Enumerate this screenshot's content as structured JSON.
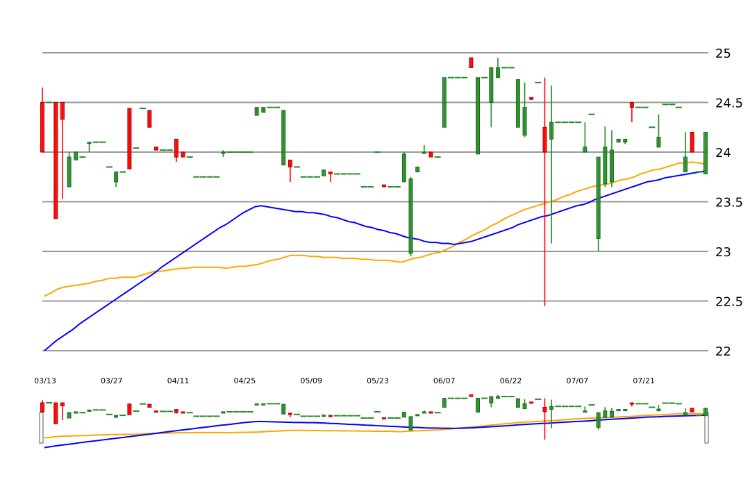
{
  "chart_data": {
    "type": "candlestick",
    "colors": {
      "up": "#228b22",
      "down": "#ff0000",
      "ma_short": "#ffa500",
      "ma_long": "#0000ff",
      "grid": "#999999"
    },
    "y_axis": {
      "ticks": [
        "22",
        "22.5",
        "23",
        "23.5",
        "24",
        "24.5",
        "25"
      ],
      "ylim": [
        22,
        25
      ],
      "position": "right"
    },
    "x_axis": {
      "ticks": [
        "03/13",
        "03/27",
        "04/11",
        "04/25",
        "05/09",
        "05/23",
        "06/07",
        "06/22",
        "07/07",
        "07/21"
      ]
    },
    "candles": [
      [
        24.5,
        24.65,
        24.0,
        24.0
      ],
      [
        24.5,
        24.5,
        24.5,
        24.5
      ],
      [
        24.5,
        24.5,
        23.33,
        23.33
      ],
      [
        24.5,
        24.5,
        23.53,
        24.33
      ],
      [
        23.65,
        24.0,
        23.65,
        23.95
      ],
      [
        23.92,
        24.0,
        23.92,
        24.0
      ],
      [
        23.95,
        23.95,
        23.95,
        23.95
      ],
      [
        24.1,
        24.1,
        24.0,
        24.1
      ],
      [
        24.1,
        24.1,
        24.1,
        24.1
      ],
      [
        24.1,
        24.1,
        24.1,
        24.1
      ],
      [
        23.85,
        23.85,
        23.85,
        23.85
      ],
      [
        23.7,
        23.8,
        23.65,
        23.8
      ],
      [
        23.8,
        23.8,
        23.8,
        23.8
      ],
      [
        24.44,
        24.44,
        23.83,
        23.83
      ],
      [
        24.04,
        24.04,
        24.04,
        24.04
      ],
      [
        24.44,
        24.44,
        24.44,
        24.44
      ],
      [
        24.42,
        24.42,
        24.25,
        24.25
      ],
      [
        24.05,
        24.05,
        24.02,
        24.02
      ],
      [
        24.02,
        24.02,
        24.02,
        24.02
      ],
      [
        24.02,
        24.02,
        24.02,
        24.02
      ],
      [
        24.13,
        24.13,
        23.9,
        23.95
      ],
      [
        24.0,
        24.0,
        23.95,
        23.95
      ],
      [
        23.95,
        23.95,
        23.95,
        23.95
      ],
      [
        23.75,
        23.75,
        23.75,
        23.75
      ],
      [
        23.75,
        23.75,
        23.75,
        23.75
      ],
      [
        23.75,
        23.75,
        23.75,
        23.75
      ],
      [
        23.75,
        23.75,
        23.75,
        23.75
      ],
      [
        24.0,
        24.02,
        23.95,
        24.0
      ],
      [
        24.0,
        24.0,
        24.0,
        24.0
      ],
      [
        24.0,
        24.0,
        24.0,
        24.0
      ],
      [
        24.0,
        24.0,
        24.0,
        24.0
      ],
      [
        24.0,
        24.0,
        24.0,
        24.0
      ],
      [
        24.37,
        24.45,
        24.37,
        24.45
      ],
      [
        24.4,
        24.45,
        24.4,
        24.45
      ],
      [
        24.45,
        24.45,
        24.45,
        24.45
      ],
      [
        24.45,
        24.45,
        24.45,
        24.45
      ],
      [
        23.87,
        24.42,
        23.87,
        24.42
      ],
      [
        23.92,
        23.92,
        23.7,
        23.85
      ],
      [
        23.85,
        23.85,
        23.85,
        23.85
      ],
      [
        23.75,
        23.75,
        23.75,
        23.75
      ],
      [
        23.75,
        23.75,
        23.75,
        23.75
      ],
      [
        23.75,
        23.75,
        23.75,
        23.75
      ],
      [
        23.76,
        23.82,
        23.76,
        23.82
      ],
      [
        23.8,
        23.8,
        23.7,
        23.78
      ],
      [
        23.78,
        23.78,
        23.78,
        23.78
      ],
      [
        23.78,
        23.78,
        23.78,
        23.78
      ],
      [
        23.78,
        23.78,
        23.78,
        23.78
      ],
      [
        23.78,
        23.78,
        23.78,
        23.78
      ],
      [
        23.65,
        23.65,
        23.65,
        23.65
      ],
      [
        23.65,
        23.65,
        23.65,
        23.65
      ],
      [
        24.0,
        24.0,
        24.0,
        24.0
      ],
      [
        23.67,
        23.67,
        23.65,
        23.65
      ],
      [
        23.65,
        23.65,
        23.65,
        23.65
      ],
      [
        23.65,
        23.65,
        23.65,
        23.65
      ],
      [
        23.7,
        24.0,
        23.7,
        23.98
      ],
      [
        22.98,
        23.75,
        22.95,
        23.73
      ],
      [
        23.8,
        23.85,
        23.8,
        23.85
      ],
      [
        24.0,
        24.07,
        24.0,
        24.0
      ],
      [
        24.0,
        24.0,
        23.95,
        23.95
      ],
      [
        23.95,
        23.95,
        23.95,
        23.95
      ],
      [
        24.25,
        24.75,
        24.25,
        24.75
      ],
      [
        24.75,
        24.75,
        24.75,
        24.75
      ],
      [
        24.75,
        24.75,
        24.75,
        24.75
      ],
      [
        24.75,
        24.75,
        24.75,
        24.75
      ],
      [
        24.95,
        24.95,
        24.85,
        24.85
      ],
      [
        23.98,
        24.75,
        23.98,
        24.75
      ],
      [
        24.75,
        24.75,
        24.75,
        24.75
      ],
      [
        24.5,
        24.85,
        24.25,
        24.85
      ],
      [
        24.75,
        24.95,
        24.75,
        24.85
      ],
      [
        24.85,
        24.85,
        24.85,
        24.85
      ],
      [
        24.85,
        24.85,
        24.85,
        24.85
      ],
      [
        24.25,
        24.73,
        24.25,
        24.73
      ],
      [
        24.17,
        24.7,
        24.15,
        24.45
      ],
      [
        24.55,
        24.55,
        24.53,
        24.53
      ],
      [
        24.7,
        24.7,
        24.7,
        24.7
      ],
      [
        24.25,
        24.75,
        22.45,
        24.0
      ],
      [
        24.13,
        24.67,
        23.08,
        24.3
      ],
      [
        24.3,
        24.3,
        24.3,
        24.3
      ],
      [
        24.3,
        24.3,
        24.3,
        24.3
      ],
      [
        24.3,
        24.3,
        24.3,
        24.3
      ],
      [
        24.3,
        24.3,
        24.3,
        24.3
      ],
      [
        24.0,
        24.3,
        24.0,
        24.05
      ],
      [
        24.38,
        24.38,
        24.38,
        24.38
      ],
      [
        23.13,
        23.95,
        23.0,
        23.95
      ],
      [
        23.68,
        24.26,
        23.65,
        24.05
      ],
      [
        23.7,
        24.22,
        23.65,
        24.02
      ],
      [
        24.1,
        24.13,
        24.1,
        24.13
      ],
      [
        24.1,
        24.13,
        24.08,
        24.13
      ],
      [
        24.5,
        24.5,
        24.3,
        24.45
      ],
      [
        24.45,
        24.45,
        24.45,
        24.45
      ],
      [
        24.45,
        24.45,
        24.45,
        24.45
      ],
      [
        24.25,
        24.25,
        24.25,
        24.25
      ],
      [
        24.05,
        24.38,
        24.05,
        24.15
      ],
      [
        24.48,
        24.48,
        24.48,
        24.48
      ],
      [
        24.48,
        24.48,
        24.48,
        24.48
      ],
      [
        24.45,
        24.45,
        24.45,
        24.45
      ],
      [
        23.8,
        24.2,
        23.8,
        23.95
      ],
      [
        24.2,
        24.2,
        24.0,
        24.0
      ],
      [
        23.8,
        23.8,
        23.8,
        23.8
      ],
      [
        23.78,
        24.2,
        23.78,
        24.2
      ]
    ],
    "ma_short": [
      22.55,
      22.58,
      22.62,
      22.64,
      22.65,
      22.66,
      22.67,
      22.68,
      22.7,
      22.71,
      22.73,
      22.73,
      22.74,
      22.74,
      22.74,
      22.76,
      22.78,
      22.8,
      22.8,
      22.81,
      22.82,
      22.83,
      22.83,
      22.84,
      22.84,
      22.84,
      22.84,
      22.84,
      22.83,
      22.84,
      22.85,
      22.85,
      22.86,
      22.87,
      22.89,
      22.91,
      22.92,
      22.94,
      22.96,
      22.96,
      22.96,
      22.95,
      22.95,
      22.94,
      22.94,
      22.94,
      22.93,
      22.93,
      22.93,
      22.92,
      22.92,
      22.91,
      22.91,
      22.91,
      22.9,
      22.89,
      22.91,
      22.93,
      22.94,
      22.96,
      22.98,
      22.99,
      23.02,
      23.05,
      23.09,
      23.12,
      23.16,
      23.19,
      23.22,
      23.26,
      23.29,
      23.33,
      23.36,
      23.39,
      23.42,
      23.44,
      23.46,
      23.48,
      23.5,
      23.52,
      23.55,
      23.57,
      23.6,
      23.62,
      23.64,
      23.66,
      23.67,
      23.68,
      23.7,
      23.72,
      23.73,
      23.75,
      23.78,
      23.8,
      23.82,
      23.83,
      23.85,
      23.87,
      23.89,
      23.89,
      23.9,
      23.89,
      23.88
    ],
    "ma_long": [
      22.0,
      22.05,
      22.1,
      22.14,
      22.18,
      22.22,
      22.27,
      22.31,
      22.35,
      22.39,
      22.43,
      22.47,
      22.51,
      22.55,
      22.59,
      22.63,
      22.67,
      22.71,
      22.75,
      22.79,
      22.84,
      22.88,
      22.92,
      22.96,
      23.0,
      23.04,
      23.08,
      23.12,
      23.16,
      23.2,
      23.24,
      23.27,
      23.31,
      23.35,
      23.39,
      23.42,
      23.45,
      23.46,
      23.45,
      23.44,
      23.43,
      23.42,
      23.41,
      23.4,
      23.4,
      23.39,
      23.39,
      23.38,
      23.37,
      23.35,
      23.34,
      23.32,
      23.3,
      23.29,
      23.27,
      23.25,
      23.24,
      23.22,
      23.21,
      23.19,
      23.18,
      23.16,
      23.14,
      23.13,
      23.12,
      23.1,
      23.09,
      23.09,
      23.08,
      23.08,
      23.07,
      23.08,
      23.09,
      23.1,
      23.12,
      23.14,
      23.16,
      23.18,
      23.2,
      23.22,
      23.24,
      23.27,
      23.29,
      23.31,
      23.33,
      23.35,
      23.36,
      23.38,
      23.4,
      23.42,
      23.44,
      23.46,
      23.47,
      23.49,
      23.52,
      23.54,
      23.56,
      23.58,
      23.6,
      23.62,
      23.64,
      23.66,
      23.68,
      23.7,
      23.71,
      23.72,
      23.74,
      23.75,
      23.76,
      23.77,
      23.78,
      23.79,
      23.8,
      23.81
    ]
  }
}
